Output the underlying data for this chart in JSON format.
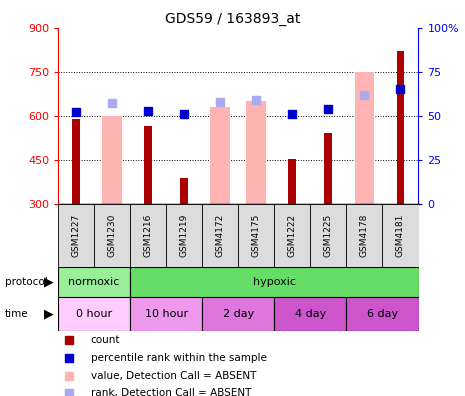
{
  "title": "GDS59 / 163893_at",
  "samples": [
    "GSM1227",
    "GSM1230",
    "GSM1216",
    "GSM1219",
    "GSM4172",
    "GSM4175",
    "GSM1222",
    "GSM1225",
    "GSM4178",
    "GSM4181"
  ],
  "count_values": [
    590,
    null,
    565,
    388,
    null,
    null,
    453,
    540,
    null,
    820
  ],
  "absent_values": [
    null,
    600,
    null,
    null,
    630,
    650,
    null,
    null,
    750,
    null
  ],
  "rank_values": [
    52,
    null,
    53,
    51,
    null,
    null,
    51,
    54,
    null,
    65
  ],
  "absent_rank_values": [
    null,
    57,
    null,
    null,
    58,
    59,
    null,
    null,
    62,
    null
  ],
  "ylim_left": [
    300,
    900
  ],
  "ylim_right": [
    0,
    100
  ],
  "yticks_left": [
    300,
    450,
    600,
    750,
    900
  ],
  "yticks_right": [
    0,
    25,
    50,
    75,
    100
  ],
  "bar_color_count": "#AA0000",
  "bar_color_absent": "#FFB3B3",
  "dot_color_rank": "#0000CC",
  "dot_color_absent_rank": "#AAAAEE",
  "protocol_groups": [
    {
      "label": "normoxic",
      "start": 0,
      "end": 2,
      "color": "#99EE99"
    },
    {
      "label": "hypoxic",
      "start": 2,
      "end": 10,
      "color": "#66DD66"
    }
  ],
  "time_groups": [
    {
      "label": "0 hour",
      "start": 0,
      "end": 2,
      "color": "#FFCCFF"
    },
    {
      "label": "10 hour",
      "start": 2,
      "end": 4,
      "color": "#EE99EE"
    },
    {
      "label": "2 day",
      "start": 4,
      "end": 6,
      "color": "#DD77DD"
    },
    {
      "label": "4 day",
      "start": 6,
      "end": 8,
      "color": "#CC55CC"
    },
    {
      "label": "6 day",
      "start": 8,
      "end": 10,
      "color": "#CC55CC"
    }
  ]
}
